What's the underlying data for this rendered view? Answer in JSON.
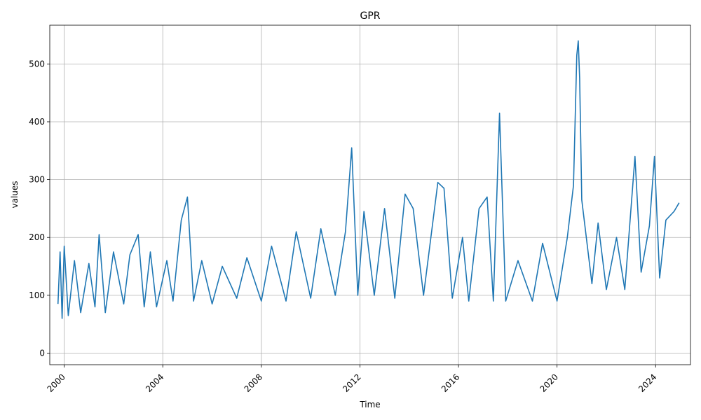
{
  "chart_data": {
    "type": "line",
    "title": "GPR",
    "xlabel": "Time",
    "ylabel": "values",
    "x_ticks": [
      "2000",
      "2004",
      "2008",
      "2012",
      "2016",
      "2020",
      "2024"
    ],
    "y_ticks": [
      "0",
      "100",
      "200",
      "300",
      "400",
      "500"
    ],
    "xlim": [
      "1999-06-01",
      "2025-06-01"
    ],
    "ylim": [
      -20,
      567
    ],
    "grid": true,
    "color": "#1f77b4",
    "series": [
      {
        "points": [
          [
            "1999-10-01",
            85
          ],
          [
            "1999-11-01",
            175
          ],
          [
            "1999-12-01",
            60
          ],
          [
            "2000-01-01",
            185
          ],
          [
            "2000-03-01",
            65
          ],
          [
            "2000-06-01",
            160
          ],
          [
            "2000-09-01",
            70
          ],
          [
            "2001-01-01",
            155
          ],
          [
            "2001-04-01",
            80
          ],
          [
            "2001-06-01",
            205
          ],
          [
            "2001-09-01",
            70
          ],
          [
            "2002-01-01",
            175
          ],
          [
            "2002-06-01",
            85
          ],
          [
            "2002-09-01",
            170
          ],
          [
            "2003-01-01",
            205
          ],
          [
            "2003-04-01",
            80
          ],
          [
            "2003-07-01",
            175
          ],
          [
            "2003-10-01",
            80
          ],
          [
            "2004-03-01",
            160
          ],
          [
            "2004-06-01",
            90
          ],
          [
            "2004-10-01",
            230
          ],
          [
            "2005-01-01",
            270
          ],
          [
            "2005-04-01",
            90
          ],
          [
            "2005-08-01",
            160
          ],
          [
            "2006-01-01",
            85
          ],
          [
            "2006-06-01",
            150
          ],
          [
            "2007-01-01",
            95
          ],
          [
            "2007-06-01",
            165
          ],
          [
            "2008-01-01",
            90
          ],
          [
            "2008-06-01",
            185
          ],
          [
            "2009-01-01",
            90
          ],
          [
            "2009-06-01",
            210
          ],
          [
            "2010-01-01",
            95
          ],
          [
            "2010-06-01",
            215
          ],
          [
            "2011-01-01",
            100
          ],
          [
            "2011-06-01",
            210
          ],
          [
            "2011-09-01",
            355
          ],
          [
            "2011-12-01",
            100
          ],
          [
            "2012-03-01",
            245
          ],
          [
            "2012-08-01",
            100
          ],
          [
            "2013-01-01",
            250
          ],
          [
            "2013-06-01",
            95
          ],
          [
            "2013-11-01",
            275
          ],
          [
            "2014-03-01",
            250
          ],
          [
            "2014-08-01",
            100
          ],
          [
            "2015-03-01",
            295
          ],
          [
            "2015-06-01",
            285
          ],
          [
            "2015-10-01",
            95
          ],
          [
            "2016-03-01",
            200
          ],
          [
            "2016-06-01",
            90
          ],
          [
            "2016-11-01",
            250
          ],
          [
            "2017-03-01",
            270
          ],
          [
            "2017-06-01",
            90
          ],
          [
            "2017-09-01",
            415
          ],
          [
            "2017-12-01",
            90
          ],
          [
            "2018-06-01",
            160
          ],
          [
            "2019-01-01",
            90
          ],
          [
            "2019-06-01",
            190
          ],
          [
            "2020-01-01",
            90
          ],
          [
            "2020-06-01",
            200
          ],
          [
            "2020-09-01",
            290
          ],
          [
            "2020-10-20",
            515
          ],
          [
            "2020-11-10",
            540
          ],
          [
            "2020-12-01",
            475
          ],
          [
            "2021-01-01",
            265
          ],
          [
            "2021-06-01",
            120
          ],
          [
            "2021-09-01",
            225
          ],
          [
            "2022-01-01",
            110
          ],
          [
            "2022-06-01",
            200
          ],
          [
            "2022-10-01",
            110
          ],
          [
            "2023-03-01",
            340
          ],
          [
            "2023-06-01",
            140
          ],
          [
            "2023-10-01",
            220
          ],
          [
            "2023-12-15",
            340
          ],
          [
            "2024-03-01",
            130
          ],
          [
            "2024-06-01",
            230
          ],
          [
            "2024-10-01",
            245
          ],
          [
            "2024-12-15",
            260
          ]
        ]
      }
    ]
  }
}
